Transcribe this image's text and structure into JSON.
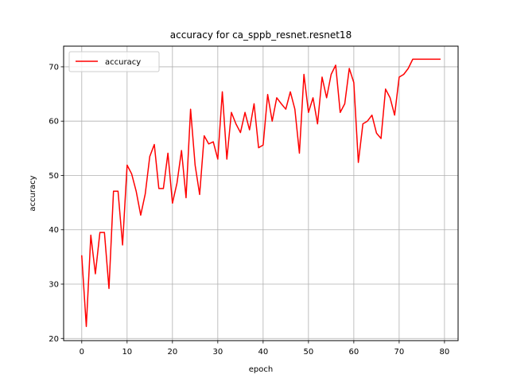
{
  "chart_data": {
    "type": "line",
    "title": "accuracy for ca_sppb_resnet.resnet18",
    "xlabel": "epoch",
    "ylabel": "accuracy",
    "xlim": [
      -4,
      83
    ],
    "ylim": [
      19.6,
      73.8
    ],
    "xticks": [
      0,
      10,
      20,
      30,
      40,
      50,
      60,
      70,
      80
    ],
    "yticks": [
      20,
      30,
      40,
      50,
      60,
      70
    ],
    "grid": true,
    "legend_position": "upper left",
    "series": [
      {
        "name": "accuracy",
        "color": "#ff0000",
        "x": [
          0,
          1,
          2,
          3,
          4,
          5,
          6,
          7,
          8,
          9,
          10,
          11,
          12,
          13,
          14,
          15,
          16,
          17,
          18,
          19,
          20,
          21,
          22,
          23,
          24,
          25,
          26,
          27,
          28,
          29,
          30,
          31,
          32,
          33,
          34,
          35,
          36,
          37,
          38,
          39,
          40,
          41,
          42,
          43,
          44,
          45,
          46,
          47,
          48,
          49,
          50,
          51,
          52,
          53,
          54,
          55,
          56,
          57,
          58,
          59,
          60,
          61,
          62,
          63,
          64,
          65,
          66,
          67,
          68,
          69,
          70,
          71,
          72,
          73,
          74,
          75,
          76,
          77,
          78,
          79
        ],
        "y": [
          35.2,
          22.2,
          39.0,
          31.9,
          39.5,
          39.5,
          29.2,
          47.1,
          47.1,
          37.2,
          51.9,
          50.3,
          47.1,
          42.7,
          46.6,
          53.5,
          55.7,
          47.6,
          47.6,
          54.1,
          44.9,
          48.6,
          54.6,
          45.9,
          62.2,
          51.9,
          46.5,
          57.3,
          55.8,
          56.2,
          53.0,
          65.4,
          53.0,
          61.6,
          59.5,
          57.9,
          61.6,
          58.4,
          63.2,
          55.1,
          55.6,
          64.9,
          60.0,
          64.3,
          63.2,
          62.2,
          65.4,
          62.2,
          54.1,
          68.6,
          61.6,
          64.3,
          59.5,
          68.1,
          64.3,
          68.6,
          70.3,
          61.6,
          63.2,
          69.7,
          67.1,
          52.4,
          59.5,
          60.0,
          61.1,
          57.8,
          56.8,
          65.9,
          64.3,
          61.1,
          68.1,
          68.6,
          69.7,
          71.4,
          71.4,
          71.4,
          71.4,
          71.4,
          71.4,
          71.4
        ]
      }
    ]
  }
}
